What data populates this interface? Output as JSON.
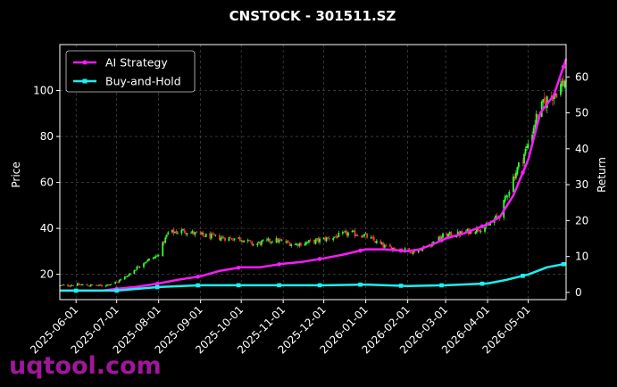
{
  "chart_data": {
    "type": "line",
    "title": "CNSTOCK - 301511.SZ",
    "ylabel": "Price",
    "y2label": "Return",
    "ylim": [
      9,
      120
    ],
    "y2lim": [
      -2,
      69
    ],
    "xlim": [
      "2025-05-20",
      "2026-05-29"
    ],
    "yticks": [
      20,
      40,
      60,
      80,
      100
    ],
    "y2ticks": [
      0,
      10,
      20,
      30,
      40,
      50,
      60
    ],
    "xticks": [
      "2025-06-01",
      "2025-07-01",
      "2025-08-01",
      "2025-09-01",
      "2025-10-01",
      "2025-11-01",
      "2025-12-01",
      "2026-01-01",
      "2026-02-01",
      "2026-03-01",
      "2026-04-01",
      "2026-05-01"
    ],
    "grid": true,
    "legend_position": "top-left",
    "candlesticks": {
      "up_color": "#33ff33",
      "down_color": "#ff3333",
      "close_anchors": [
        [
          "2025-05-20",
          15
        ],
        [
          "2025-06-01",
          15.5
        ],
        [
          "2025-06-20",
          15
        ],
        [
          "2025-07-01",
          16.5
        ],
        [
          "2025-07-10",
          20
        ],
        [
          "2025-07-20",
          25
        ],
        [
          "2025-07-31",
          28
        ],
        [
          "2025-08-08",
          38
        ],
        [
          "2025-08-20",
          39
        ],
        [
          "2025-09-01",
          37
        ],
        [
          "2025-09-15",
          36
        ],
        [
          "2025-10-01",
          35.5
        ],
        [
          "2025-10-10",
          33
        ],
        [
          "2025-10-25",
          35
        ],
        [
          "2025-11-10",
          33
        ],
        [
          "2025-11-25",
          34.5
        ],
        [
          "2025-12-10",
          36.5
        ],
        [
          "2025-12-20",
          38
        ],
        [
          "2025-12-31",
          37
        ],
        [
          "2026-01-15",
          32
        ],
        [
          "2026-01-25",
          31
        ],
        [
          "2026-02-05",
          30
        ],
        [
          "2026-02-15",
          32
        ],
        [
          "2026-02-28",
          37
        ],
        [
          "2026-03-10",
          37.5
        ],
        [
          "2026-03-20",
          39
        ],
        [
          "2026-04-01",
          41
        ],
        [
          "2026-04-10",
          46
        ],
        [
          "2026-04-20",
          62
        ],
        [
          "2026-04-30",
          75
        ],
        [
          "2026-05-08",
          90
        ],
        [
          "2026-05-15",
          96
        ],
        [
          "2026-05-22",
          100
        ],
        [
          "2026-05-29",
          105
        ]
      ]
    },
    "series": [
      {
        "name": "AI Strategy",
        "axis": "right",
        "color": "#ff1aff",
        "marker": "circle",
        "x": [
          "2025-05-20",
          "2025-06-01",
          "2025-06-20",
          "2025-07-01",
          "2025-07-15",
          "2025-08-01",
          "2025-08-15",
          "2025-09-01",
          "2025-09-15",
          "2025-10-01",
          "2025-10-15",
          "2025-11-01",
          "2025-11-15",
          "2025-12-01",
          "2025-12-15",
          "2026-01-01",
          "2026-01-15",
          "2026-02-01",
          "2026-02-10",
          "2026-02-20",
          "2026-03-01",
          "2026-03-15",
          "2026-04-01",
          "2026-04-10",
          "2026-04-20",
          "2026-05-01",
          "2026-05-10",
          "2026-05-20",
          "2026-05-29"
        ],
        "y": [
          0.5,
          0.5,
          0.5,
          1,
          1.5,
          2.5,
          3.5,
          4.5,
          6,
          7,
          7,
          8,
          8.5,
          9.5,
          10.5,
          12,
          12,
          11.5,
          12,
          13.5,
          15,
          16.5,
          19,
          21,
          27,
          37,
          50,
          55,
          65
        ]
      },
      {
        "name": "Buy-and-Hold",
        "axis": "right",
        "color": "#1af0f0",
        "marker": "square",
        "x": [
          "2025-05-20",
          "2025-06-01",
          "2025-07-01",
          "2025-08-01",
          "2025-09-01",
          "2025-10-01",
          "2025-11-01",
          "2025-12-01",
          "2026-01-01",
          "2026-02-01",
          "2026-03-01",
          "2026-04-01",
          "2026-04-15",
          "2026-05-01",
          "2026-05-15",
          "2026-05-29"
        ],
        "y": [
          0.5,
          0.5,
          0.5,
          1.5,
          2,
          2,
          2,
          2,
          2.2,
          1.8,
          2,
          2.5,
          3.5,
          5,
          7,
          8
        ]
      }
    ]
  },
  "watermark": "uqtool.com"
}
